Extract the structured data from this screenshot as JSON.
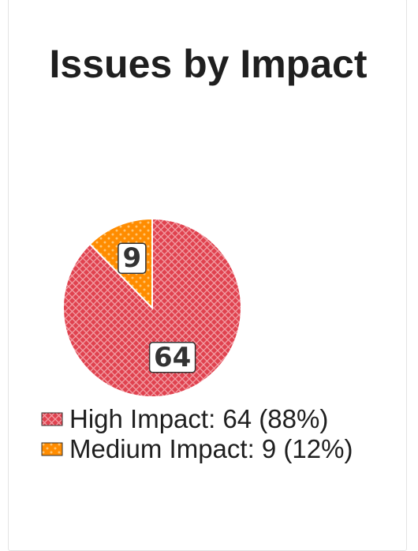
{
  "title": "Issues by Impact",
  "chart_data": {
    "type": "pie",
    "title": "Issues by Impact",
    "slices": [
      {
        "name": "High Impact",
        "value": 64,
        "label": "64",
        "color": "#e0424f",
        "pattern": "crosshatch"
      },
      {
        "name": "Medium Impact",
        "value": 9,
        "label": "9",
        "color": "#ff8c00",
        "pattern": "dots"
      }
    ],
    "legend": [
      "High Impact: 64 (88%)",
      "Medium Impact: 9 (12%)"
    ],
    "legend_position": "bottom"
  }
}
